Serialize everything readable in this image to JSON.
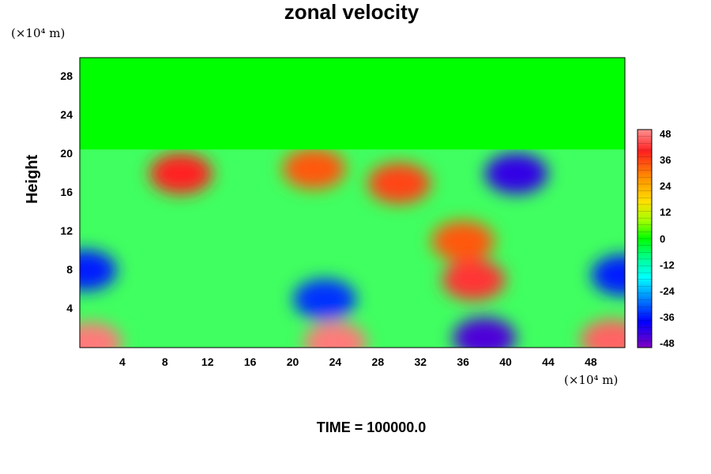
{
  "chart_data": {
    "type": "heatmap",
    "title": "zonal velocity",
    "ylabel": "Height",
    "y_unit": "(×10⁴ m)",
    "x_unit": "(×10⁴ m)",
    "x_ticks": [
      "4",
      "8",
      "12",
      "16",
      "20",
      "24",
      "28",
      "32",
      "36",
      "40",
      "44",
      "48"
    ],
    "y_ticks": [
      "4",
      "8",
      "12",
      "16",
      "20",
      "24",
      "28"
    ],
    "xlim": [
      0,
      51.2
    ],
    "ylim": [
      0,
      30
    ],
    "colorbar": {
      "ticks": [
        "48",
        "36",
        "24",
        "12",
        "0",
        "-12",
        "-24",
        "-36",
        "-48"
      ],
      "range": [
        -48,
        48
      ]
    },
    "features": [
      {
        "x": 9.5,
        "y": 18,
        "value": 38
      },
      {
        "x": 22,
        "y": 18.5,
        "value": 32
      },
      {
        "x": 30,
        "y": 17,
        "value": 34
      },
      {
        "x": 41,
        "y": 18,
        "value": -42
      },
      {
        "x": 37,
        "y": 7,
        "value": 40
      },
      {
        "x": 36,
        "y": 11,
        "value": 32
      },
      {
        "x": 0.5,
        "y": 8,
        "value": -36
      },
      {
        "x": 51,
        "y": 7.5,
        "value": -36
      },
      {
        "x": 23,
        "y": 5,
        "value": -34
      },
      {
        "x": 38,
        "y": 1,
        "value": -44
      },
      {
        "x": 1,
        "y": 0.5,
        "value": 46
      },
      {
        "x": 24,
        "y": 0.5,
        "value": 46
      },
      {
        "x": 50,
        "y": 0.8,
        "value": 44
      }
    ],
    "upper_layer_value": 0,
    "upper_layer_base": 20.5
  },
  "time_label": "TIME = 100000.0"
}
